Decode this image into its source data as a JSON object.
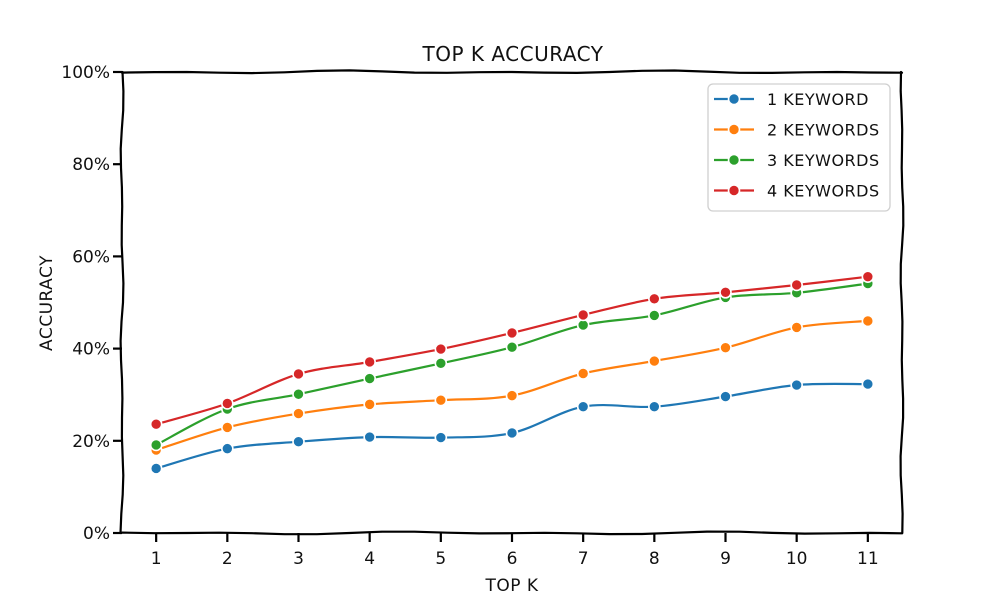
{
  "chart_data": {
    "type": "line",
    "title": "TOP K ACCURACY",
    "xlabel": "TOP K",
    "ylabel": "ACCURACY",
    "x": [
      1,
      2,
      3,
      4,
      5,
      6,
      7,
      8,
      9,
      10,
      11
    ],
    "x_tick_labels": [
      "1",
      "2",
      "3",
      "4",
      "5",
      "6",
      "7",
      "8",
      "9",
      "10",
      "11"
    ],
    "ylim": [
      0,
      100
    ],
    "y_ticks": [
      0,
      20,
      40,
      60,
      80,
      100
    ],
    "y_tick_labels": [
      "0%",
      "20%",
      "40%",
      "60%",
      "80%",
      "100%"
    ],
    "grid": false,
    "legend_position": "top-right",
    "series": [
      {
        "name": "1 KEYWORD",
        "color": "#1f77b4",
        "values": [
          14,
          18.3,
          19.8,
          20.8,
          20.7,
          21.7,
          27.4,
          27.4,
          29.6,
          32.1,
          32.3
        ]
      },
      {
        "name": "2 KEYWORDS",
        "color": "#ff7f0e",
        "values": [
          18,
          22.9,
          25.9,
          27.9,
          28.8,
          29.8,
          34.6,
          37.3,
          40.2,
          44.6,
          46
        ]
      },
      {
        "name": "3 KEYWORDS",
        "color": "#2ca02c",
        "values": [
          19.1,
          26.9,
          30.1,
          33.5,
          36.8,
          40.3,
          45.1,
          47.2,
          51.1,
          52.1,
          54.1
        ]
      },
      {
        "name": "4 KEYWORDS",
        "color": "#d62728",
        "values": [
          23.6,
          28.1,
          34.5,
          37.1,
          39.9,
          43.4,
          47.3,
          50.8,
          52.2,
          53.8,
          55.6
        ]
      }
    ]
  }
}
